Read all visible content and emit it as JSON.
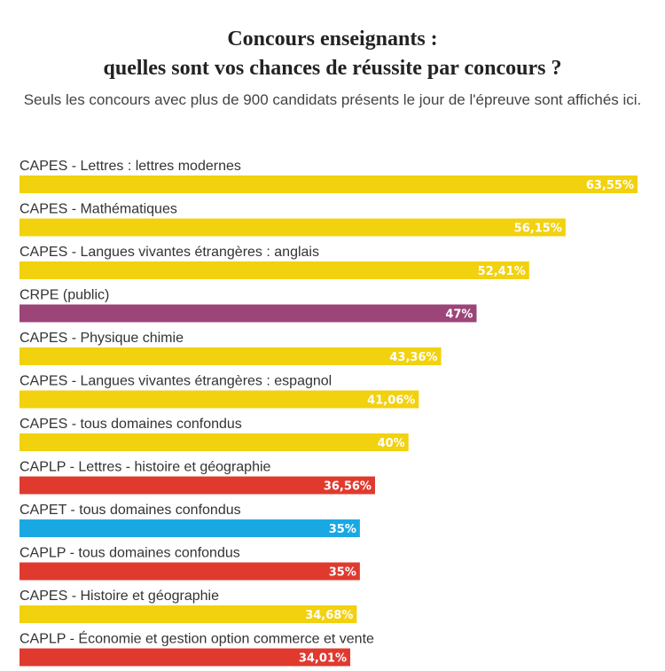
{
  "header": {
    "title_line1": "Concours enseignants :",
    "title_line2": "quelles sont vos chances de réussite par concours ?",
    "subtitle": "Seuls les concours avec plus de 900 candidats présents le jour de l'épreuve sont affichés ici."
  },
  "colors": {
    "capes": "#f2d10f",
    "crpe": "#9b4579",
    "caplp": "#e03a2f",
    "capet": "#1aa8e3"
  },
  "chart_data": {
    "type": "bar",
    "orientation": "horizontal",
    "title": "Concours enseignants : quelles sont vos chances de réussite par concours ?",
    "subtitle": "Seuls les concours avec plus de 900 candidats présents le jour de l'épreuve sont affichés ici.",
    "xlabel": "",
    "ylabel": "",
    "grid": false,
    "legend": "none",
    "categories": [
      "CAPES - Lettres : lettres modernes",
      "CAPES - Mathématiques",
      "CAPES - Langues vivantes étrangères : anglais",
      "CRPE (public)",
      "CAPES - Physique chimie",
      "CAPES - Langues vivantes étrangères : espagnol",
      "CAPES - tous domaines confondus",
      "CAPLP - Lettres - histoire et géographie",
      "CAPET - tous domaines confondus",
      "CAPLP - tous domaines confondus",
      "CAPES - Histoire et géographie",
      "CAPLP - Économie et gestion option commerce et vente"
    ],
    "values": [
      63.55,
      56.15,
      52.41,
      47,
      43.36,
      41.06,
      40,
      36.56,
      35,
      35,
      34.68,
      34.01
    ],
    "value_labels": [
      "63,55%",
      "56,15%",
      "52,41%",
      "47%",
      "43,36%",
      "41,06%",
      "40%",
      "36,56%",
      "35%",
      "35%",
      "34,68%",
      "34,01%"
    ],
    "groups": [
      "capes",
      "capes",
      "capes",
      "crpe",
      "capes",
      "capes",
      "capes",
      "caplp",
      "capet",
      "caplp",
      "capes",
      "caplp"
    ]
  }
}
